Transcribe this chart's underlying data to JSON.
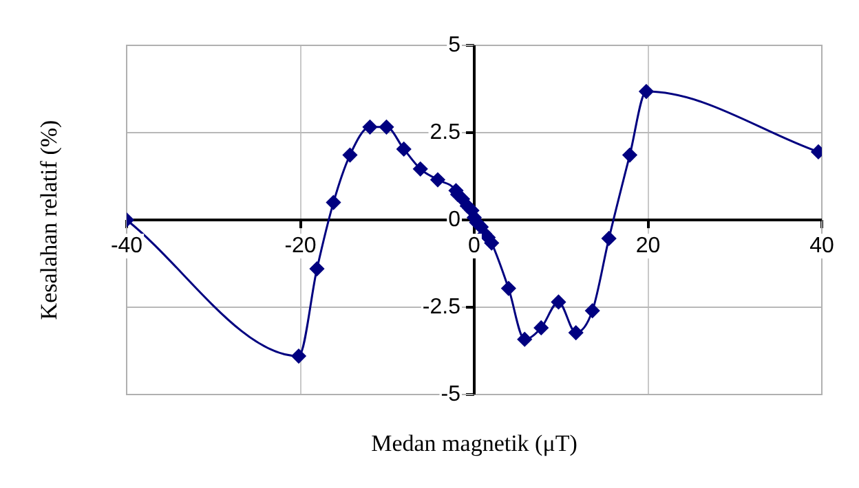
{
  "chart_data": {
    "type": "line",
    "xlabel": "Medan magnetik (μT)",
    "ylabel": "Kesalahan relatif (%)",
    "xlim": [
      -40,
      40
    ],
    "xticks": [
      -40,
      -20,
      0,
      20,
      40
    ],
    "ylim": [
      -5,
      5
    ],
    "yticks": [
      -5,
      {
        "value": -2.5,
        "label": "-2.5"
      },
      0,
      {
        "value": 2.5,
        "label": "2.5"
      },
      5
    ],
    "grid": true,
    "legend": false,
    "marker": "diamond",
    "line_style": "solid",
    "series": [
      {
        "color": "#000080",
        "x": [
          -40,
          -20.2,
          -18.1,
          -16.2,
          -14.3,
          -12,
          -10.1,
          -8.1,
          -6.2,
          -4.2,
          -2.1,
          -1.9,
          -1.35,
          -0.8,
          -0.27,
          0,
          0.27,
          0.8,
          1.2,
          1.6,
          2,
          3.95,
          5.8,
          7.7,
          9.7,
          11.7,
          13.6,
          15.5,
          17.9,
          19.8,
          39.6
        ],
        "values": [
          0,
          -3.9,
          -1.4,
          0.5,
          1.86,
          2.66,
          2.66,
          2.03,
          1.46,
          1.15,
          0.84,
          0.73,
          0.6,
          0.4,
          0.27,
          0.07,
          -0.07,
          -0.2,
          -0.4,
          -0.5,
          -0.66,
          -1.96,
          -3.42,
          -3.09,
          -2.35,
          -3.23,
          -2.6,
          -0.53,
          1.86,
          3.68,
          1.95
        ]
      }
    ]
  }
}
